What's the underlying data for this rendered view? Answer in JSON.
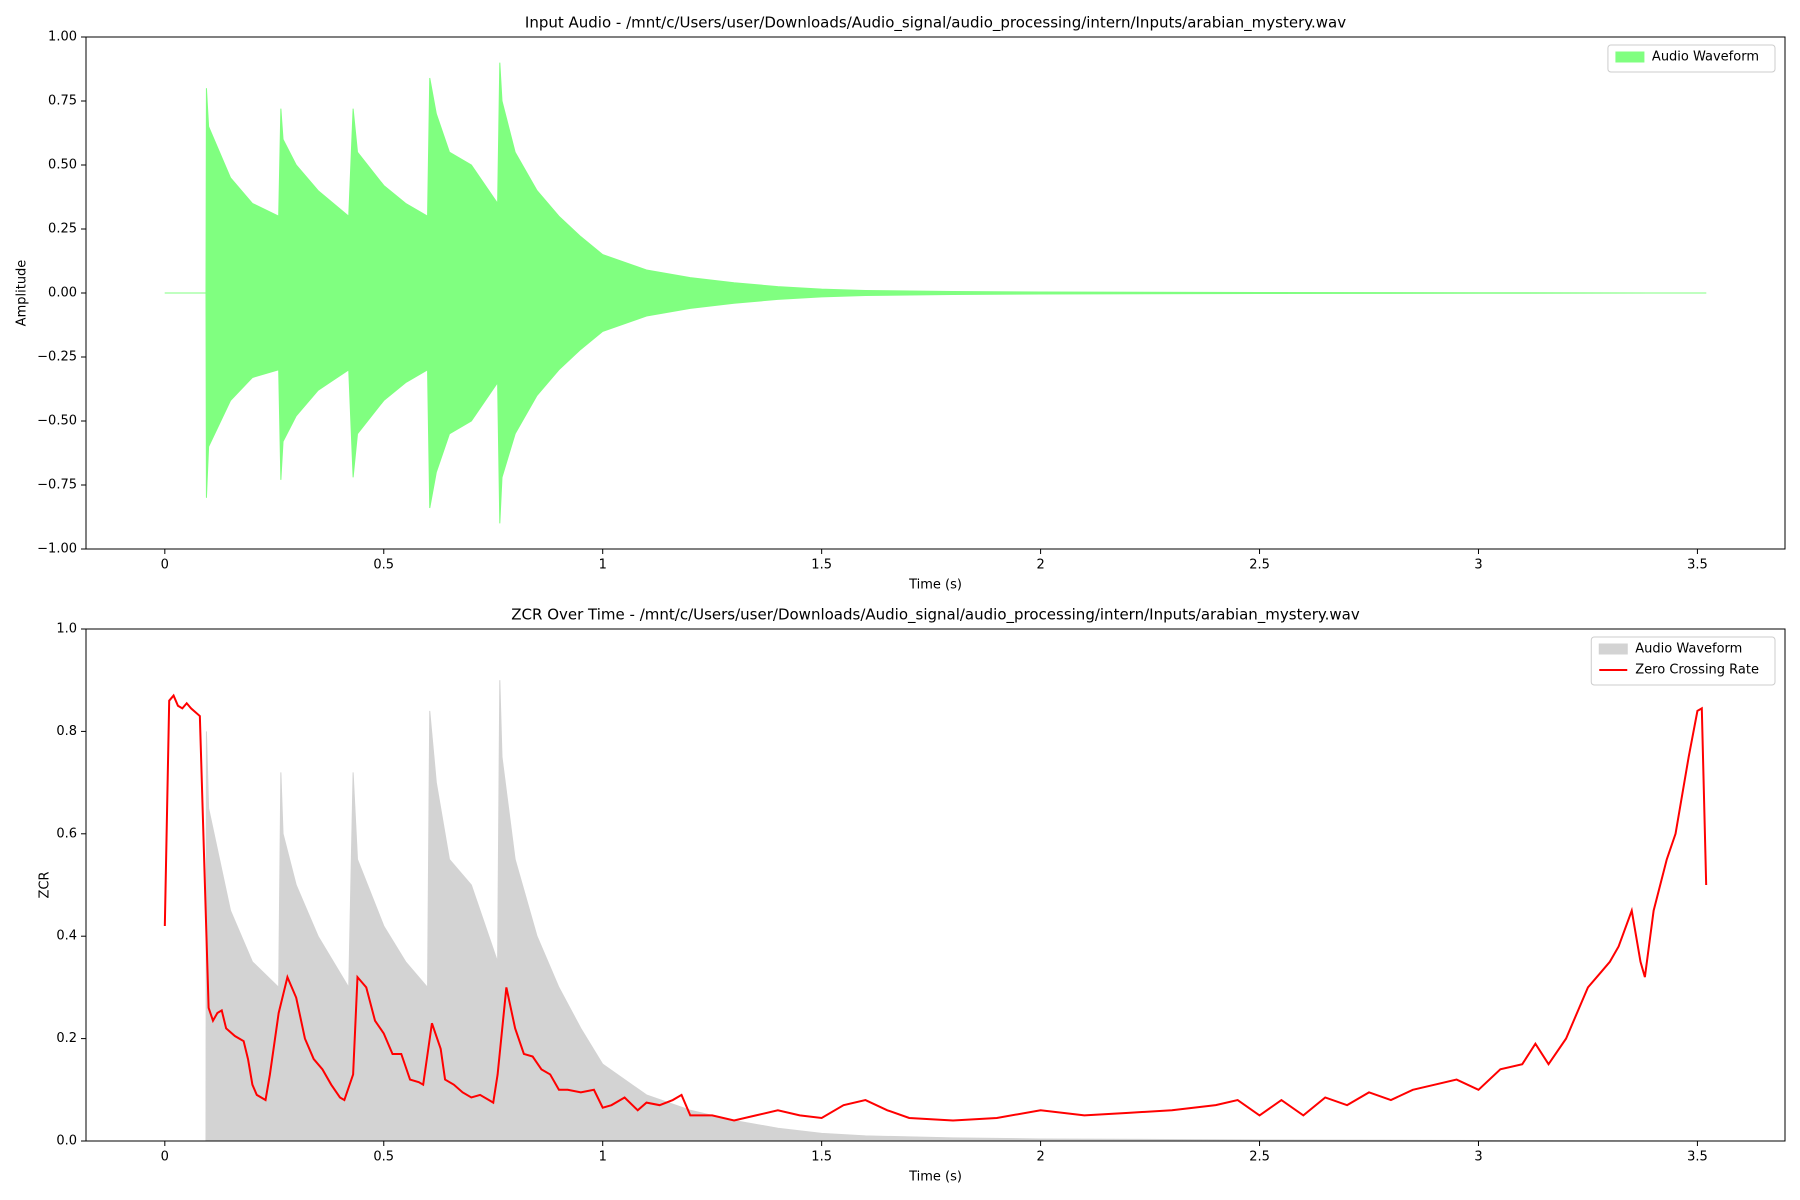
{
  "chart_data": [
    {
      "type": "area",
      "title": "Input Audio - /mnt/c/Users/user/Downloads/Audio_signal/audio_processing/intern/Inputs/arabian_mystery.wav",
      "xlabel": "Time (s)",
      "ylabel": "Amplitude",
      "xlim": [
        -0.18,
        3.7
      ],
      "ylim": [
        -1,
        1
      ],
      "xticks": [
        0,
        0.5,
        1,
        1.5,
        2,
        2.5,
        3,
        3.5
      ],
      "yticks": [
        {
          "value": -1,
          "label": "−1.00"
        },
        {
          "value": -0.75,
          "label": "−0.75"
        },
        {
          "value": -0.5,
          "label": "−0.50"
        },
        {
          "value": -0.25,
          "label": "−0.25"
        },
        {
          "value": 0,
          "label": "0.00"
        },
        {
          "value": 0.25,
          "label": "0.25"
        },
        {
          "value": 0.5,
          "label": "0.50"
        },
        {
          "value": 0.75,
          "label": "0.75"
        },
        {
          "value": 1,
          "label": "1.00"
        }
      ],
      "legend": "upper right",
      "series": [
        {
          "name": "Audio Waveform",
          "type": "area",
          "color": "#80ff80",
          "x": [
            0,
            0.094,
            0.095,
            0.1,
            0.15,
            0.2,
            0.26,
            0.265,
            0.27,
            0.3,
            0.35,
            0.42,
            0.43,
            0.44,
            0.5,
            0.55,
            0.6,
            0.605,
            0.62,
            0.65,
            0.7,
            0.76,
            0.765,
            0.77,
            0.8,
            0.85,
            0.9,
            0.95,
            1.0,
            1.1,
            1.2,
            1.3,
            1.4,
            1.5,
            1.6,
            1.8,
            2.0,
            2.5,
            3.0,
            3.52
          ],
          "values": [
            0,
            0,
            0.8,
            0.65,
            0.45,
            0.35,
            0.3,
            0.72,
            0.6,
            0.5,
            0.4,
            0.3,
            0.72,
            0.55,
            0.42,
            0.35,
            0.3,
            0.84,
            0.7,
            0.55,
            0.5,
            0.35,
            0.9,
            0.75,
            0.55,
            0.4,
            0.3,
            0.22,
            0.15,
            0.09,
            0.06,
            0.04,
            0.025,
            0.015,
            0.01,
            0.006,
            0.004,
            0.002,
            0.001,
            0
          ],
          "lower": [
            0,
            0,
            -0.8,
            -0.6,
            -0.42,
            -0.33,
            -0.3,
            -0.73,
            -0.58,
            -0.48,
            -0.38,
            -0.3,
            -0.72,
            -0.55,
            -0.42,
            -0.35,
            -0.3,
            -0.84,
            -0.7,
            -0.55,
            -0.5,
            -0.35,
            -0.9,
            -0.72,
            -0.55,
            -0.4,
            -0.3,
            -0.22,
            -0.15,
            -0.09,
            -0.06,
            -0.04,
            -0.025,
            -0.015,
            -0.01,
            -0.006,
            -0.004,
            -0.002,
            -0.001,
            0
          ]
        }
      ]
    },
    {
      "type": "line",
      "title": "ZCR Over Time - /mnt/c/Users/user/Downloads/Audio_signal/audio_processing/intern/Inputs/arabian_mystery.wav",
      "xlabel": "Time (s)",
      "ylabel": "ZCR",
      "xlim": [
        -0.18,
        3.7
      ],
      "ylim": [
        0,
        1
      ],
      "xticks": [
        0,
        0.5,
        1,
        1.5,
        2,
        2.5,
        3,
        3.5
      ],
      "yticks": [
        {
          "value": 0,
          "label": "0.0"
        },
        {
          "value": 0.2,
          "label": "0.2"
        },
        {
          "value": 0.4,
          "label": "0.4"
        },
        {
          "value": 0.6,
          "label": "0.6"
        },
        {
          "value": 0.8,
          "label": "0.8"
        },
        {
          "value": 1,
          "label": "1.0"
        }
      ],
      "legend": "upper right",
      "series": [
        {
          "name": "Audio Waveform",
          "type": "area",
          "color": "#d3d3d3",
          "x": [
            0,
            0.094,
            0.095,
            0.1,
            0.15,
            0.2,
            0.26,
            0.265,
            0.27,
            0.3,
            0.35,
            0.42,
            0.43,
            0.44,
            0.5,
            0.55,
            0.6,
            0.605,
            0.62,
            0.65,
            0.7,
            0.76,
            0.765,
            0.77,
            0.8,
            0.85,
            0.9,
            0.95,
            1.0,
            1.1,
            1.2,
            1.3,
            1.4,
            1.5,
            1.6,
            1.8,
            2.0,
            2.5,
            3.0,
            3.52
          ],
          "values": [
            0,
            0,
            0.8,
            0.65,
            0.45,
            0.35,
            0.3,
            0.72,
            0.6,
            0.5,
            0.4,
            0.3,
            0.72,
            0.55,
            0.42,
            0.35,
            0.3,
            0.84,
            0.7,
            0.55,
            0.5,
            0.35,
            0.9,
            0.75,
            0.55,
            0.4,
            0.3,
            0.22,
            0.15,
            0.09,
            0.06,
            0.04,
            0.025,
            0.015,
            0.01,
            0.006,
            0.004,
            0.002,
            0.001,
            0
          ]
        },
        {
          "name": "Zero Crossing Rate",
          "type": "line",
          "color": "#ff0000",
          "x": [
            0,
            0.01,
            0.02,
            0.03,
            0.04,
            0.05,
            0.06,
            0.08,
            0.1,
            0.11,
            0.12,
            0.13,
            0.14,
            0.16,
            0.18,
            0.19,
            0.2,
            0.21,
            0.23,
            0.24,
            0.26,
            0.28,
            0.3,
            0.32,
            0.34,
            0.36,
            0.38,
            0.4,
            0.41,
            0.43,
            0.44,
            0.46,
            0.48,
            0.5,
            0.52,
            0.54,
            0.56,
            0.58,
            0.59,
            0.61,
            0.63,
            0.64,
            0.66,
            0.68,
            0.7,
            0.72,
            0.74,
            0.75,
            0.76,
            0.78,
            0.8,
            0.82,
            0.84,
            0.86,
            0.88,
            0.9,
            0.92,
            0.95,
            0.98,
            1.0,
            1.02,
            1.05,
            1.08,
            1.1,
            1.13,
            1.16,
            1.18,
            1.2,
            1.25,
            1.3,
            1.35,
            1.4,
            1.45,
            1.5,
            1.55,
            1.6,
            1.65,
            1.7,
            1.8,
            1.9,
            2.0,
            2.1,
            2.2,
            2.3,
            2.4,
            2.45,
            2.5,
            2.55,
            2.6,
            2.65,
            2.7,
            2.75,
            2.8,
            2.85,
            2.9,
            2.95,
            3.0,
            3.05,
            3.1,
            3.13,
            3.16,
            3.2,
            3.25,
            3.28,
            3.3,
            3.32,
            3.35,
            3.37,
            3.38,
            3.4,
            3.43,
            3.45,
            3.48,
            3.5,
            3.51,
            3.52
          ],
          "values": [
            0.42,
            0.86,
            0.87,
            0.85,
            0.845,
            0.855,
            0.845,
            0.83,
            0.26,
            0.235,
            0.25,
            0.255,
            0.22,
            0.205,
            0.195,
            0.16,
            0.11,
            0.09,
            0.08,
            0.13,
            0.25,
            0.32,
            0.28,
            0.2,
            0.16,
            0.14,
            0.11,
            0.085,
            0.08,
            0.13,
            0.32,
            0.3,
            0.235,
            0.21,
            0.17,
            0.17,
            0.12,
            0.115,
            0.11,
            0.23,
            0.18,
            0.12,
            0.11,
            0.095,
            0.085,
            0.09,
            0.08,
            0.075,
            0.13,
            0.3,
            0.22,
            0.17,
            0.165,
            0.14,
            0.13,
            0.1,
            0.1,
            0.095,
            0.1,
            0.065,
            0.07,
            0.085,
            0.06,
            0.075,
            0.07,
            0.08,
            0.09,
            0.05,
            0.05,
            0.04,
            0.05,
            0.06,
            0.05,
            0.045,
            0.07,
            0.08,
            0.06,
            0.045,
            0.04,
            0.045,
            0.06,
            0.05,
            0.055,
            0.06,
            0.07,
            0.08,
            0.05,
            0.08,
            0.05,
            0.085,
            0.07,
            0.095,
            0.08,
            0.1,
            0.11,
            0.12,
            0.1,
            0.14,
            0.15,
            0.19,
            0.15,
            0.2,
            0.3,
            0.33,
            0.35,
            0.38,
            0.45,
            0.35,
            0.32,
            0.45,
            0.55,
            0.6,
            0.75,
            0.84,
            0.845,
            0.5
          ]
        }
      ]
    }
  ]
}
